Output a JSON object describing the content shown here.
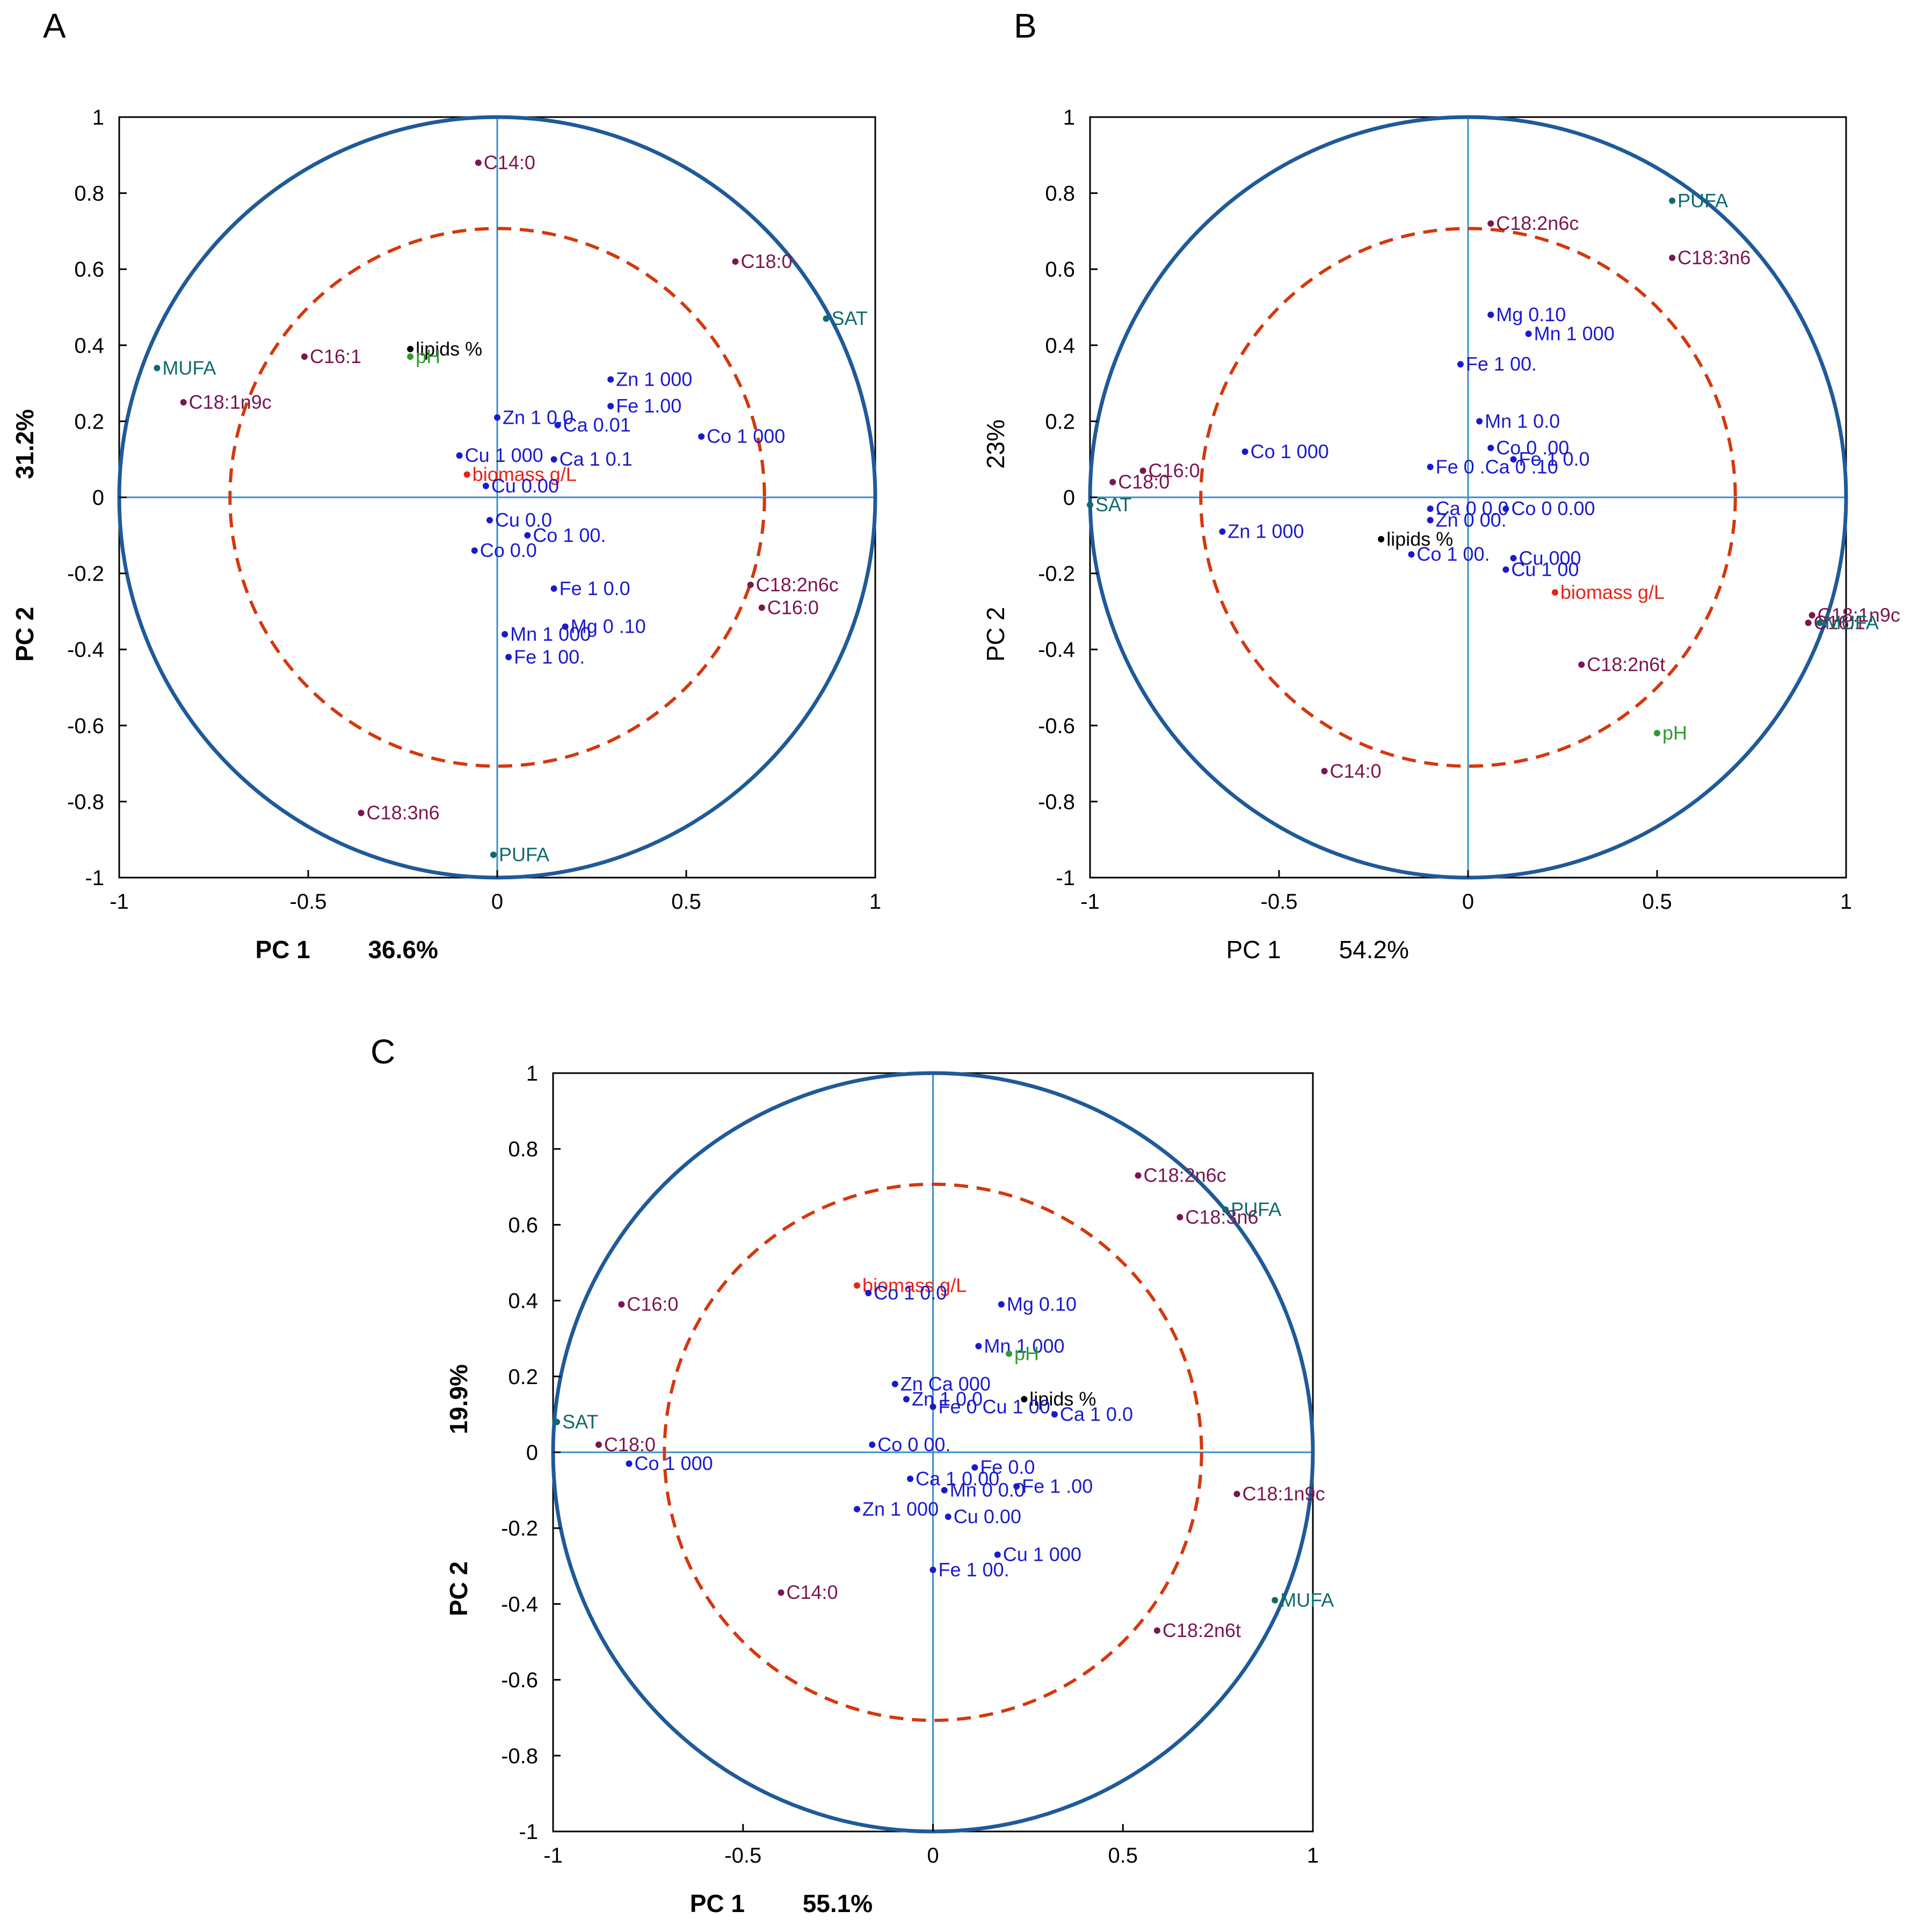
{
  "colors": {
    "circle_outer": "#1f5a99",
    "circle_inner": "#d4380d",
    "axis_lines": "#3a8fc9",
    "frame": "#000000",
    "fatty_acid": "#7a1650",
    "metal": "#1a1acd",
    "group": "#0e6b6b",
    "biomass": "#e8231a",
    "pH": "#2f9a2f",
    "lipids": "#000000"
  },
  "chart_data": [
    {
      "type": "scatter",
      "panel": "A",
      "title": "",
      "xlabel": "PC 1",
      "ylabel": "PC 2",
      "x_variance": "36.6%",
      "y_variance": "31.2%",
      "xlim": [
        -1,
        1
      ],
      "ylim": [
        -1,
        1
      ],
      "x_ticks": [
        "-1",
        "-0.5",
        "0",
        "0.5",
        "1"
      ],
      "y_ticks": [
        "1",
        "0.8",
        "0.6",
        "0.4",
        "0.2",
        "0",
        "-0.2",
        "-0.4",
        "-0.6",
        "-0.8",
        "-1"
      ],
      "circles": [
        1.0,
        0.707
      ],
      "points": [
        {
          "label": "C14:0",
          "x": -0.05,
          "y": 0.88,
          "group": "fatty_acid"
        },
        {
          "label": "C18:0",
          "x": 0.63,
          "y": 0.62,
          "group": "fatty_acid"
        },
        {
          "label": "SAT",
          "x": 0.87,
          "y": 0.47,
          "group": "group"
        },
        {
          "label": "MUFA",
          "x": -0.9,
          "y": 0.34,
          "group": "group"
        },
        {
          "label": "C16:1",
          "x": -0.51,
          "y": 0.37,
          "group": "fatty_acid"
        },
        {
          "label": "lipids %",
          "x": -0.23,
          "y": 0.39,
          "group": "lipids"
        },
        {
          "label": "pH",
          "x": -0.23,
          "y": 0.37,
          "group": "pH"
        },
        {
          "label": "C18:1n9c",
          "x": -0.83,
          "y": 0.25,
          "group": "fatty_acid"
        },
        {
          "label": "Zn 1 000",
          "x": 0.3,
          "y": 0.31,
          "group": "metal"
        },
        {
          "label": "Fe 1.00",
          "x": 0.3,
          "y": 0.24,
          "group": "metal"
        },
        {
          "label": "Zn 1 0.0",
          "x": 0.0,
          "y": 0.21,
          "group": "metal"
        },
        {
          "label": "Ca 0.01",
          "x": 0.16,
          "y": 0.19,
          "group": "metal"
        },
        {
          "label": "Co 1 000",
          "x": 0.54,
          "y": 0.16,
          "group": "metal"
        },
        {
          "label": "Cu 1 000",
          "x": -0.1,
          "y": 0.11,
          "group": "metal"
        },
        {
          "label": "Ca 1 0.1",
          "x": 0.15,
          "y": 0.1,
          "group": "metal"
        },
        {
          "label": "biomass g/L",
          "x": -0.08,
          "y": 0.06,
          "group": "biomass"
        },
        {
          "label": "Cu 0.00",
          "x": -0.03,
          "y": 0.03,
          "group": "metal"
        },
        {
          "label": "Cu 0.0",
          "x": -0.02,
          "y": -0.06,
          "group": "metal"
        },
        {
          "label": "Co 0.0",
          "x": -0.06,
          "y": -0.14,
          "group": "metal"
        },
        {
          "label": "Co 1 00.",
          "x": 0.08,
          "y": -0.1,
          "group": "metal"
        },
        {
          "label": "Fe 1 0.0",
          "x": 0.15,
          "y": -0.24,
          "group": "metal"
        },
        {
          "label": "C18:2n6c",
          "x": 0.67,
          "y": -0.23,
          "group": "fatty_acid"
        },
        {
          "label": "C16:0",
          "x": 0.7,
          "y": -0.29,
          "group": "fatty_acid"
        },
        {
          "label": "Mn 1 000",
          "x": 0.02,
          "y": -0.36,
          "group": "metal"
        },
        {
          "label": "Mg 0 .10",
          "x": 0.18,
          "y": -0.34,
          "group": "metal"
        },
        {
          "label": "Fe 1 00.",
          "x": 0.03,
          "y": -0.42,
          "group": "metal"
        },
        {
          "label": "C18:3n6",
          "x": -0.36,
          "y": -0.83,
          "group": "fatty_acid"
        },
        {
          "label": "PUFA",
          "x": -0.01,
          "y": -0.94,
          "group": "group"
        }
      ]
    },
    {
      "type": "scatter",
      "panel": "B",
      "title": "",
      "xlabel": "PC 1",
      "ylabel": "PC 2",
      "x_variance": "54.2%",
      "y_variance": "23%",
      "xlim": [
        -1,
        1
      ],
      "ylim": [
        -1,
        1
      ],
      "x_ticks": [
        "-1",
        "-0.5",
        "0",
        "0.5",
        "1"
      ],
      "y_ticks": [
        "1",
        "0.8",
        "0.6",
        "0.4",
        "0.2",
        "0",
        "-0.2",
        "-0.4",
        "-0.6",
        "-0.8",
        "-1"
      ],
      "circles": [
        1.0,
        0.707
      ],
      "points": [
        {
          "label": "PUFA",
          "x": 0.54,
          "y": 0.78,
          "group": "group"
        },
        {
          "label": "C18:2n6c",
          "x": 0.06,
          "y": 0.72,
          "group": "fatty_acid"
        },
        {
          "label": "C18:3n6",
          "x": 0.54,
          "y": 0.63,
          "group": "fatty_acid"
        },
        {
          "label": "Mg 0.10",
          "x": 0.06,
          "y": 0.48,
          "group": "metal"
        },
        {
          "label": "Mn 1 000",
          "x": 0.16,
          "y": 0.43,
          "group": "metal"
        },
        {
          "label": "Fe 1 00.",
          "x": -0.02,
          "y": 0.35,
          "group": "metal"
        },
        {
          "label": "Mn 1 0.0",
          "x": 0.03,
          "y": 0.2,
          "group": "metal"
        },
        {
          "label": "Co 1 000",
          "x": -0.59,
          "y": 0.12,
          "group": "metal"
        },
        {
          "label": "Co 0 .00",
          "x": 0.06,
          "y": 0.13,
          "group": "metal"
        },
        {
          "label": "C16:0",
          "x": -0.86,
          "y": 0.07,
          "group": "fatty_acid"
        },
        {
          "label": "C18:0",
          "x": -0.94,
          "y": 0.04,
          "group": "fatty_acid"
        },
        {
          "label": "Fe 0 .Ca 0 .10",
          "x": -0.1,
          "y": 0.08,
          "group": "metal"
        },
        {
          "label": "Fe 1 0.0",
          "x": 0.12,
          "y": 0.1,
          "group": "metal"
        },
        {
          "label": "SAT",
          "x": -1.0,
          "y": -0.02,
          "group": "group"
        },
        {
          "label": "Zn 1 000",
          "x": -0.65,
          "y": -0.09,
          "group": "metal"
        },
        {
          "label": "Ca 0 0.0",
          "x": -0.1,
          "y": -0.03,
          "group": "metal"
        },
        {
          "label": "Zn 0 00.",
          "x": -0.1,
          "y": -0.06,
          "group": "metal"
        },
        {
          "label": "Co 0 0.00",
          "x": 0.1,
          "y": -0.03,
          "group": "metal"
        },
        {
          "label": "lipids %",
          "x": -0.23,
          "y": -0.11,
          "group": "lipids"
        },
        {
          "label": "Co 1 00.",
          "x": -0.15,
          "y": -0.15,
          "group": "metal"
        },
        {
          "label": "Cu 000",
          "x": 0.12,
          "y": -0.16,
          "group": "metal"
        },
        {
          "label": "Cu 1 00",
          "x": 0.1,
          "y": -0.19,
          "group": "metal"
        },
        {
          "label": "biomass g/L",
          "x": 0.23,
          "y": -0.25,
          "group": "biomass"
        },
        {
          "label": "C16:1",
          "x": 0.9,
          "y": -0.33,
          "group": "fatty_acid"
        },
        {
          "label": "C18:1n9c",
          "x": 0.91,
          "y": -0.31,
          "group": "fatty_acid"
        },
        {
          "label": "MUFA",
          "x": 0.93,
          "y": -0.33,
          "group": "group"
        },
        {
          "label": "C18:2n6t",
          "x": 0.3,
          "y": -0.44,
          "group": "fatty_acid"
        },
        {
          "label": "pH",
          "x": 0.5,
          "y": -0.62,
          "group": "pH"
        },
        {
          "label": "C14:0",
          "x": -0.38,
          "y": -0.72,
          "group": "fatty_acid"
        }
      ]
    },
    {
      "type": "scatter",
      "panel": "C",
      "title": "",
      "xlabel": "PC 1",
      "ylabel": "PC 2",
      "x_variance": "55.1%",
      "y_variance": "19.9%",
      "xlim": [
        -1,
        1
      ],
      "ylim": [
        -1,
        1
      ],
      "x_ticks": [
        "-1",
        "-0.5",
        "0",
        "0.5",
        "1"
      ],
      "y_ticks": [
        "1",
        "0.8",
        "0.6",
        "0.4",
        "0.2",
        "0",
        "-0.2",
        "-0.4",
        "-0.6",
        "-0.8",
        "-1"
      ],
      "circles": [
        1.0,
        0.707
      ],
      "points": [
        {
          "label": "C18:2n6c",
          "x": 0.54,
          "y": 0.73,
          "group": "fatty_acid"
        },
        {
          "label": "PUFA",
          "x": 0.77,
          "y": 0.64,
          "group": "group"
        },
        {
          "label": "C18:3n6",
          "x": 0.65,
          "y": 0.62,
          "group": "fatty_acid"
        },
        {
          "label": "biomass g/L",
          "x": -0.2,
          "y": 0.44,
          "group": "biomass"
        },
        {
          "label": "Co 1 0.0",
          "x": -0.17,
          "y": 0.42,
          "group": "metal"
        },
        {
          "label": "Mg 0.10",
          "x": 0.18,
          "y": 0.39,
          "group": "metal"
        },
        {
          "label": "C16:0",
          "x": -0.82,
          "y": 0.39,
          "group": "fatty_acid"
        },
        {
          "label": "Mn 1 000",
          "x": 0.12,
          "y": 0.28,
          "group": "metal"
        },
        {
          "label": "pH",
          "x": 0.2,
          "y": 0.26,
          "group": "pH"
        },
        {
          "label": "Zn Ca 000",
          "x": -0.1,
          "y": 0.18,
          "group": "metal"
        },
        {
          "label": "lipids %",
          "x": 0.24,
          "y": 0.14,
          "group": "lipids"
        },
        {
          "label": "Zn 1 0.0",
          "x": -0.07,
          "y": 0.14,
          "group": "metal"
        },
        {
          "label": "Fe 0 Cu 1 00.",
          "x": 0.0,
          "y": 0.12,
          "group": "metal"
        },
        {
          "label": "Ca 1 0.0",
          "x": 0.32,
          "y": 0.1,
          "group": "metal"
        },
        {
          "label": "SAT",
          "x": -0.99,
          "y": 0.08,
          "group": "group"
        },
        {
          "label": "C18:0",
          "x": -0.88,
          "y": 0.02,
          "group": "fatty_acid"
        },
        {
          "label": "Co 0 00.",
          "x": -0.16,
          "y": 0.02,
          "group": "metal"
        },
        {
          "label": "Co 1 000",
          "x": -0.8,
          "y": -0.03,
          "group": "metal"
        },
        {
          "label": "Fe 0.0",
          "x": 0.11,
          "y": -0.04,
          "group": "metal"
        },
        {
          "label": "Ca 1 0.00",
          "x": -0.06,
          "y": -0.07,
          "group": "metal"
        },
        {
          "label": "Fe 1 .00",
          "x": 0.22,
          "y": -0.09,
          "group": "metal"
        },
        {
          "label": "Mn 0 0.0",
          "x": 0.03,
          "y": -0.1,
          "group": "metal"
        },
        {
          "label": "C18:1n9c",
          "x": 0.8,
          "y": -0.11,
          "group": "fatty_acid"
        },
        {
          "label": "Zn 1 000",
          "x": -0.2,
          "y": -0.15,
          "group": "metal"
        },
        {
          "label": "Cu 0.00",
          "x": 0.04,
          "y": -0.17,
          "group": "metal"
        },
        {
          "label": "Cu 1 000",
          "x": 0.17,
          "y": -0.27,
          "group": "metal"
        },
        {
          "label": "Fe 1 00.",
          "x": 0.0,
          "y": -0.31,
          "group": "metal"
        },
        {
          "label": "C14:0",
          "x": -0.4,
          "y": -0.37,
          "group": "fatty_acid"
        },
        {
          "label": "MUFA",
          "x": 0.9,
          "y": -0.39,
          "group": "group"
        },
        {
          "label": "C18:2n6t",
          "x": 0.59,
          "y": -0.47,
          "group": "fatty_acid"
        }
      ]
    }
  ]
}
